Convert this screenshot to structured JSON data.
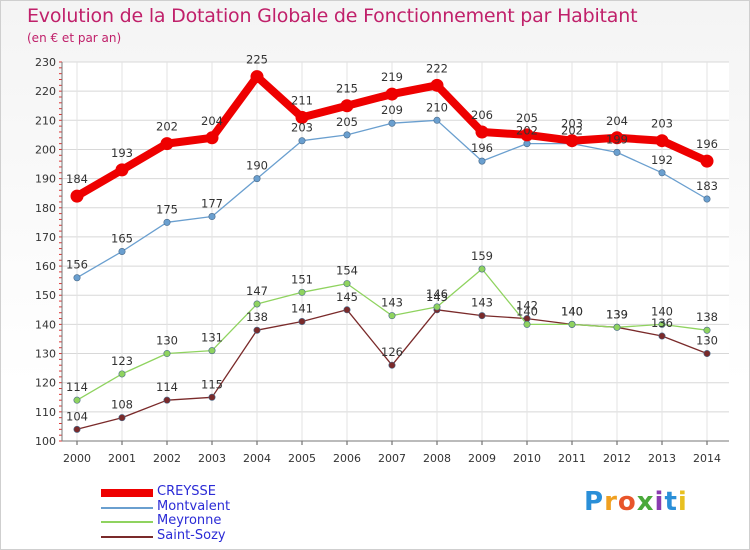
{
  "chart_data": {
    "type": "line",
    "title": "Evolution de la Dotation Globale de Fonctionnement par Habitant",
    "subtitle": "(en € et par an)",
    "xlabel": "",
    "ylabel": "",
    "categories": [
      "2000",
      "2001",
      "2002",
      "2003",
      "2004",
      "2005",
      "2006",
      "2007",
      "2008",
      "2009",
      "2010",
      "2011",
      "2012",
      "2013",
      "2014"
    ],
    "ylim": [
      100,
      230
    ],
    "yticks": [
      100,
      110,
      120,
      130,
      140,
      150,
      160,
      170,
      180,
      190,
      200,
      210,
      220,
      230
    ],
    "grid": true,
    "legend_position": "bottom-left",
    "series": [
      {
        "name": "CREYSSE",
        "color": "#ee0000",
        "values": [
          184,
          193,
          202,
          204,
          225,
          211,
          215,
          219,
          222,
          206,
          205,
          203,
          204,
          203,
          196
        ]
      },
      {
        "name": "Montvalent",
        "color": "#6a9fcf",
        "values": [
          156,
          165,
          175,
          177,
          190,
          203,
          205,
          209,
          210,
          196,
          202,
          202,
          199,
          192,
          183
        ]
      },
      {
        "name": "Meyronne",
        "color": "#8fd35f",
        "values": [
          114,
          123,
          130,
          131,
          147,
          151,
          154,
          143,
          146,
          159,
          140,
          140,
          139,
          140,
          138
        ]
      },
      {
        "name": "Saint-Sozy",
        "color": "#7a2a2a",
        "values": [
          104,
          108,
          114,
          115,
          138,
          141,
          145,
          126,
          145,
          143,
          142,
          140,
          139,
          136,
          130
        ]
      }
    ]
  },
  "logo": {
    "letters": [
      "P",
      "r",
      "o",
      "x",
      "i",
      "t",
      "i"
    ],
    "colors": [
      "#2a8fd8",
      "#f0a020",
      "#e8552a",
      "#4aa93a",
      "#8a3bb0",
      "#2a8fd8",
      "#e8c020"
    ]
  }
}
